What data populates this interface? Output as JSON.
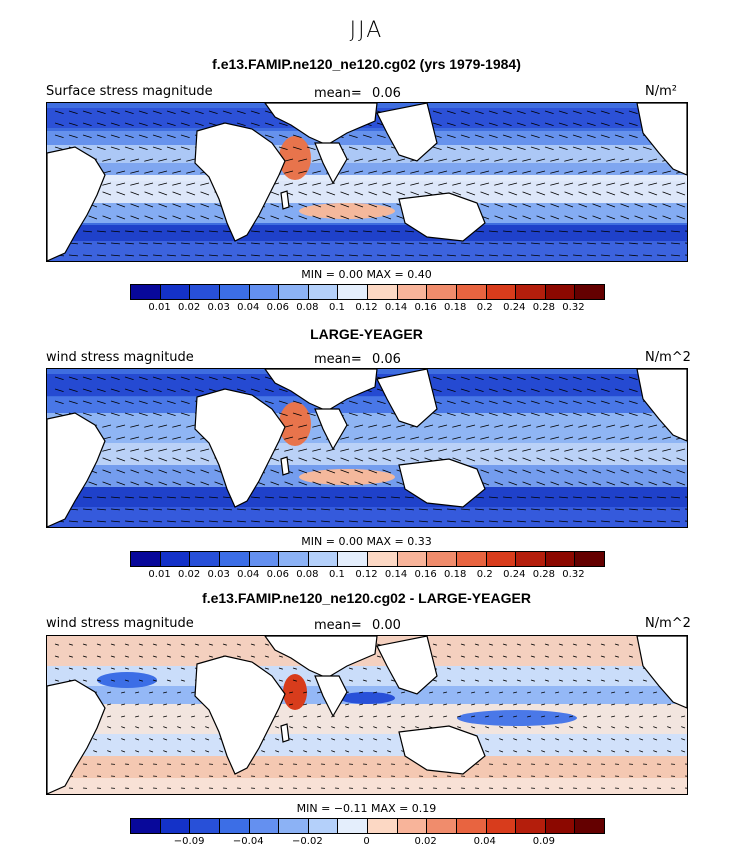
{
  "figure": {
    "season": "JJA"
  },
  "panels": [
    {
      "title": "f.e13.FAMIP.ne120_ne120.cg02 (yrs 1979-1984)",
      "left_label": "Surface stress magnitude",
      "mean_label": "mean=",
      "mean_value": "0.06",
      "units": "N/m²",
      "min_max_text": "MIN =    0.00  MAX =    0.40",
      "colorbar_ticks": [
        "0.01",
        "0.02",
        "0.03",
        "0.04",
        "0.06",
        "0.08",
        "0.1",
        "0.12",
        "0.14",
        "0.16",
        "0.18",
        "0.2",
        "0.24",
        "0.28",
        "0.32"
      ]
    },
    {
      "title": "LARGE-YEAGER",
      "left_label": "wind stress magnitude",
      "mean_label": "mean=",
      "mean_value": "0.06",
      "units": "N/m^2",
      "min_max_text": "MIN =    0.00  MAX =    0.33",
      "colorbar_ticks": [
        "0.01",
        "0.02",
        "0.03",
        "0.04",
        "0.06",
        "0.08",
        "0.1",
        "0.12",
        "0.14",
        "0.16",
        "0.18",
        "0.2",
        "0.24",
        "0.28",
        "0.32"
      ]
    },
    {
      "title": "f.e13.FAMIP.ne120_ne120.cg02 - LARGE-YEAGER",
      "left_label": "wind stress magnitude",
      "mean_label": "mean=",
      "mean_value": "0.00",
      "units": "N/m^2",
      "min_max_text": "MIN = −0.11  MAX =    0.19",
      "colorbar_ticks": [
        "",
        "−0.09",
        "",
        "−0.04",
        "",
        "−0.02",
        "",
        "0",
        "",
        "0.02",
        "",
        "0.04",
        "",
        "0.09",
        ""
      ]
    }
  ],
  "colors": {
    "magnitude_scale": [
      "#08089a",
      "#1432c8",
      "#2850d8",
      "#3c6ee6",
      "#6490f0",
      "#8cb2f5",
      "#b4d0fa",
      "#e4eefc",
      "#fcd8c4",
      "#f8b49a",
      "#f08c6c",
      "#e86440",
      "#d83c1c",
      "#b41e0c",
      "#8c0800",
      "#640000"
    ],
    "diff_scale": [
      "#08089a",
      "#1432c8",
      "#2850d8",
      "#3c6ee6",
      "#6490f0",
      "#8cb2f5",
      "#b4d0fa",
      "#e4eefc",
      "#fcd8c4",
      "#f8b49a",
      "#f08c6c",
      "#e86440",
      "#d83c1c",
      "#b41e0c",
      "#8c0800",
      "#640000"
    ]
  },
  "chart_data": [
    {
      "type": "heatmap",
      "title": "f.e13.FAMIP.ne120_ne120.cg02 (yrs 1979-1984)",
      "variable": "Surface stress magnitude",
      "units": "N/m²",
      "mean": 0.06,
      "min": 0.0,
      "max": 0.4,
      "levels": [
        0.01,
        0.02,
        0.03,
        0.04,
        0.06,
        0.08,
        0.1,
        0.12,
        0.14,
        0.16,
        0.18,
        0.2,
        0.24,
        0.28,
        0.32
      ]
    },
    {
      "type": "heatmap",
      "title": "LARGE-YEAGER",
      "variable": "wind stress magnitude",
      "units": "N/m^2",
      "mean": 0.06,
      "min": 0.0,
      "max": 0.33,
      "levels": [
        0.01,
        0.02,
        0.03,
        0.04,
        0.06,
        0.08,
        0.1,
        0.12,
        0.14,
        0.16,
        0.18,
        0.2,
        0.24,
        0.28,
        0.32
      ]
    },
    {
      "type": "heatmap",
      "title": "f.e13.FAMIP.ne120_ne120.cg02 - LARGE-YEAGER",
      "variable": "wind stress magnitude",
      "units": "N/m^2",
      "mean": 0.0,
      "min": -0.11,
      "max": 0.19,
      "tick_labels": [
        "-0.09",
        "-0.04",
        "-0.02",
        "0",
        "0.02",
        "0.04",
        "0.09"
      ]
    }
  ]
}
